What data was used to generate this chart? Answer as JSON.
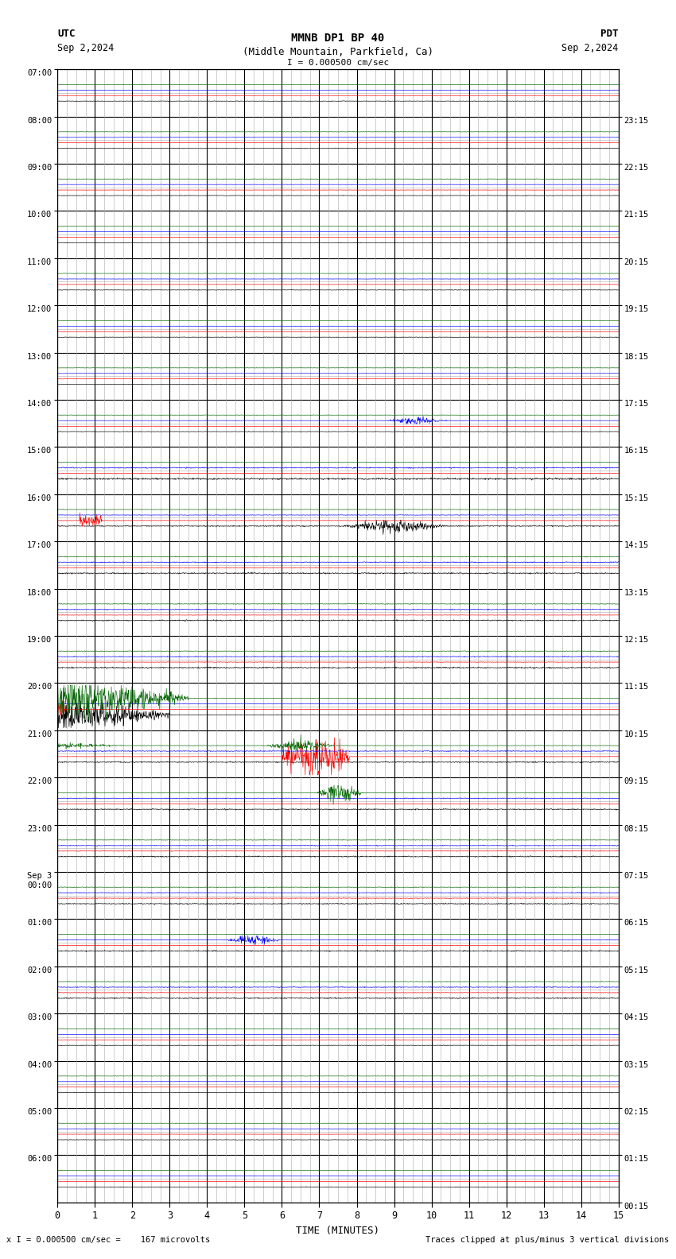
{
  "title_line1": "MMNB DP1 BP 40",
  "title_line2": "(Middle Mountain, Parkfield, Ca)",
  "scale_text": "I = 0.000500 cm/sec",
  "label_left_top": "UTC",
  "label_left_date": "Sep 2,2024",
  "label_right_top": "PDT",
  "label_right_date": "Sep 2,2024",
  "footer_left": "x I = 0.000500 cm/sec =    167 microvolts",
  "footer_right": "Traces clipped at plus/minus 3 vertical divisions",
  "bg_color": "#ffffff",
  "grid_major_color": "#000000",
  "grid_minor_color": "#aaaaaa",
  "trace_colors": {
    "black": "#000000",
    "red": "#ff0000",
    "blue": "#0000ff",
    "green": "#006600"
  },
  "left_labels": [
    "07:00",
    "08:00",
    "09:00",
    "10:00",
    "11:00",
    "12:00",
    "13:00",
    "14:00",
    "15:00",
    "16:00",
    "17:00",
    "18:00",
    "19:00",
    "20:00",
    "21:00",
    "22:00",
    "23:00",
    "Sep 3\n00:00",
    "01:00",
    "02:00",
    "03:00",
    "04:00",
    "05:00",
    "06:00"
  ],
  "right_labels": [
    "00:15",
    "01:15",
    "02:15",
    "03:15",
    "04:15",
    "05:15",
    "06:15",
    "07:15",
    "08:15",
    "09:15",
    "10:15",
    "11:15",
    "12:15",
    "13:15",
    "14:15",
    "15:15",
    "16:15",
    "17:15",
    "18:15",
    "19:15",
    "20:15",
    "21:15",
    "22:15",
    "23:15"
  ],
  "n_rows": 24,
  "xlim": [
    0,
    15
  ],
  "figsize": [
    8.5,
    15.84
  ]
}
